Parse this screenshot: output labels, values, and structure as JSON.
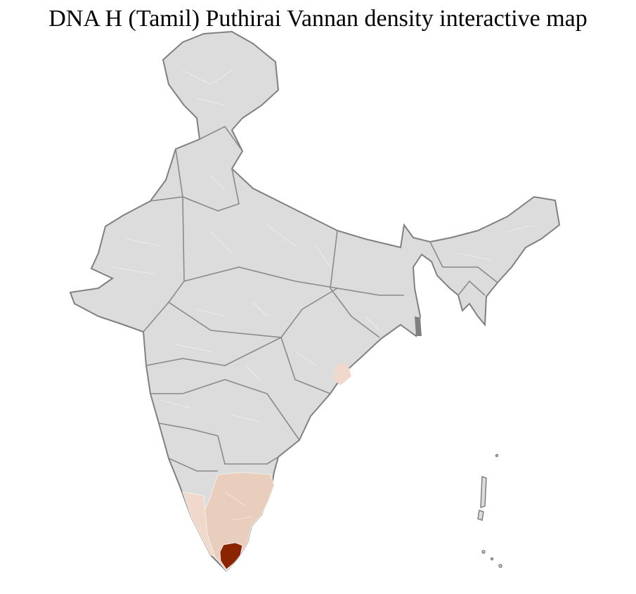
{
  "title": "DNA H (Tamil) Puthirai Vannan density interactive map",
  "colors": {
    "base": "#dcdcdc",
    "border": "#808080",
    "district_line": "#ffffff",
    "low": "#f0d8cc",
    "medium": "#e9cdbd",
    "high": "#8b2500"
  },
  "regions": [
    {
      "name": "Tamil Nadu",
      "level": "medium"
    },
    {
      "name": "Kerala",
      "level": "low"
    },
    {
      "name": "Odisha coast",
      "level": "low"
    },
    {
      "name": "Southern Tamil Nadu districts",
      "level": "high"
    }
  ]
}
